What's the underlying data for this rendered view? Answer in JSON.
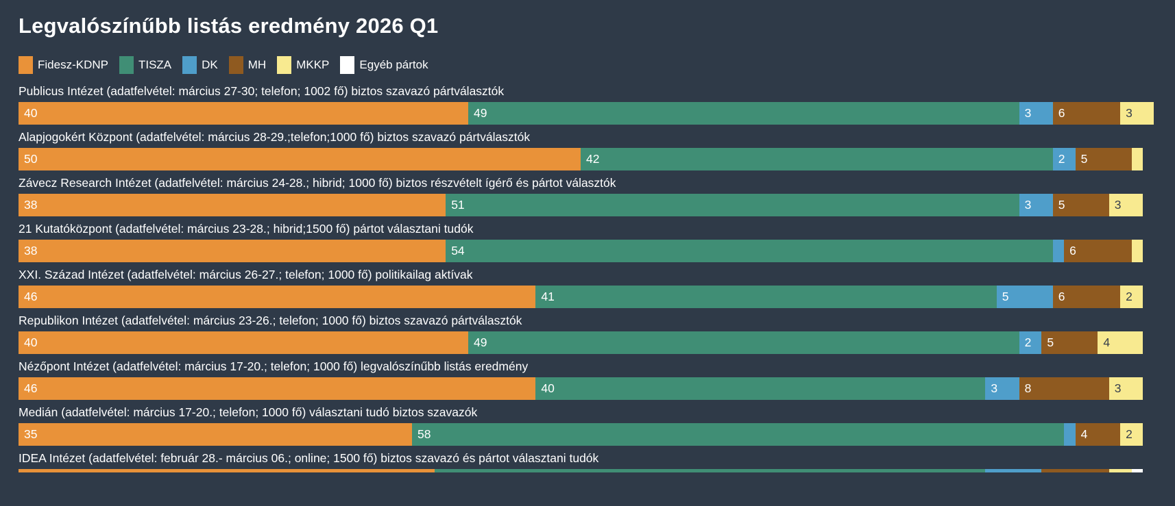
{
  "title": "Legvalószínűbb listás eredmény 2026 Q1",
  "background_color": "#2f3a48",
  "legend": {
    "items": [
      {
        "label": "Fidesz-KDNP",
        "color": "#e99239"
      },
      {
        "label": "TISZA",
        "color": "#408e75"
      },
      {
        "label": "DK",
        "color": "#4f9eca"
      },
      {
        "label": "MH",
        "color": "#8f5a20"
      },
      {
        "label": "MKKP",
        "color": "#f8ea90"
      },
      {
        "label": "Egyéb pártok",
        "color": "#ffffff"
      }
    ]
  },
  "chart_data": {
    "type": "bar",
    "stacked": true,
    "orientation": "horizontal",
    "units": "%",
    "xlim": [
      0,
      101
    ],
    "grid": false,
    "legend_position": "top",
    "series_names": [
      "Fidesz-KDNP",
      "TISZA",
      "DK",
      "MH",
      "MKKP",
      "Egyéb pártok"
    ],
    "series_colors": [
      "#e99239",
      "#408e75",
      "#4f9eca",
      "#8f5a20",
      "#f8ea90",
      "#ffffff"
    ],
    "value_label_min": 2,
    "rows": [
      {
        "label": "Publicus Intézet (adatfelvétel: március 27-30; telefon; 1002 fő) biztos szavazó pártválasztók",
        "values": [
          40,
          49,
          3,
          6,
          3,
          0
        ],
        "cut": false
      },
      {
        "label": "Alapjogokért Központ (adatfelvétel: március 28-29.;telefon;1000 fő) biztos szavazó pártválasztók",
        "values": [
          50,
          42,
          2,
          5,
          1,
          0
        ],
        "cut": false
      },
      {
        "label": "Závecz Research Intézet (adatfelvétel: március 24-28.; hibrid; 1000 fő) biztos részvételt ígérő és pártot választók",
        "values": [
          38,
          51,
          3,
          5,
          3,
          0
        ],
        "cut": false
      },
      {
        "label": "21 Kutatóközpont (adatfelvétel: március 23-28.; hibrid;1500 fő) pártot választani tudók",
        "values": [
          38,
          54,
          1,
          6,
          1,
          0
        ],
        "cut": false
      },
      {
        "label": "XXI. Század Intézet (adatfelvétel: március 26-27.; telefon; 1000 fő) politikailag aktívak",
        "values": [
          46,
          41,
          5,
          6,
          2,
          0
        ],
        "cut": false
      },
      {
        "label": "Republikon Intézet (adatfelvétel: március 23-26.; telefon; 1000 fő) biztos szavazó pártválasztók",
        "values": [
          40,
          49,
          2,
          5,
          4,
          0
        ],
        "cut": false
      },
      {
        "label": "Nézőpont Intézet (adatfelvétel: március 17-20.; telefon; 1000 fő) legvalószínűbb listás eredmény",
        "values": [
          46,
          40,
          3,
          8,
          3,
          0
        ],
        "cut": false
      },
      {
        "label": "Medián (adatfelvétel: március 17-20.; telefon; 1000 fő) választani tudó biztos szavazók",
        "values": [
          35,
          58,
          1,
          4,
          2,
          0
        ],
        "cut": false
      },
      {
        "label": "IDEA Intézet (adatfelvétel: február 28.- március 06.; online; 1500 fő) biztos szavazó és pártot választani tudók",
        "values": [
          37,
          49,
          5,
          6,
          2,
          1
        ],
        "cut": true
      }
    ]
  }
}
